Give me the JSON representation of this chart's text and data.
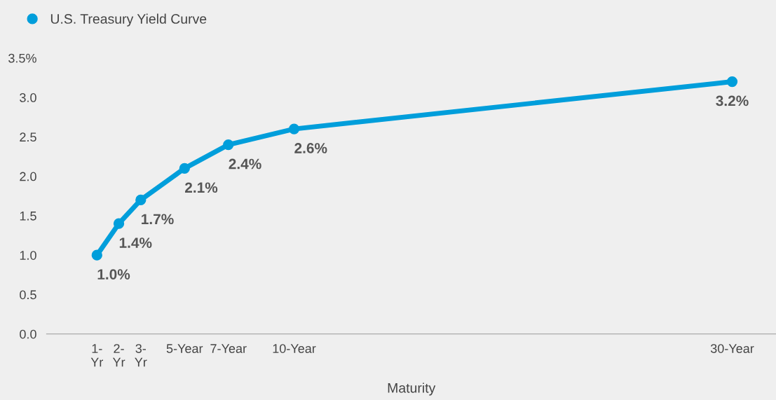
{
  "chart_data": {
    "type": "line",
    "xlabel": "Maturity",
    "x": [
      1,
      2,
      3,
      5,
      7,
      10,
      30
    ],
    "series": [
      {
        "name": "U.S. Treasury Yield Curve",
        "color": "#009edb",
        "values": [
          1.0,
          1.4,
          1.7,
          2.1,
          2.4,
          2.6,
          3.2
        ],
        "value_labels": [
          "1.0%",
          "1.4%",
          "1.7%",
          "2.1%",
          "2.4%",
          "2.6%",
          "3.2%"
        ]
      }
    ],
    "xlim": [
      -1.3,
      32
    ],
    "xticks": [
      {
        "value": 1,
        "label": "1-\nYr"
      },
      {
        "value": 2,
        "label": "2-\nYr"
      },
      {
        "value": 3,
        "label": "3-\nYr"
      },
      {
        "value": 5,
        "label": "5-Year"
      },
      {
        "value": 7,
        "label": "7-Year"
      },
      {
        "value": 10,
        "label": "10-Year"
      },
      {
        "value": 30,
        "label": "30-Year"
      }
    ],
    "ylim": [
      0,
      3.5
    ],
    "yticks": [
      {
        "value": 0,
        "label": "0.0"
      },
      {
        "value": 0.5,
        "label": "0.5"
      },
      {
        "value": 1,
        "label": "1.0"
      },
      {
        "value": 1.5,
        "label": "1.5"
      },
      {
        "value": 2,
        "label": "2.0"
      },
      {
        "value": 2.5,
        "label": "2.5"
      },
      {
        "value": 3,
        "label": "3.0"
      },
      {
        "value": 3.5,
        "label": "3.5%"
      }
    ],
    "grid": false,
    "legend": "top left",
    "marker": "circle",
    "line_style": "solid"
  }
}
